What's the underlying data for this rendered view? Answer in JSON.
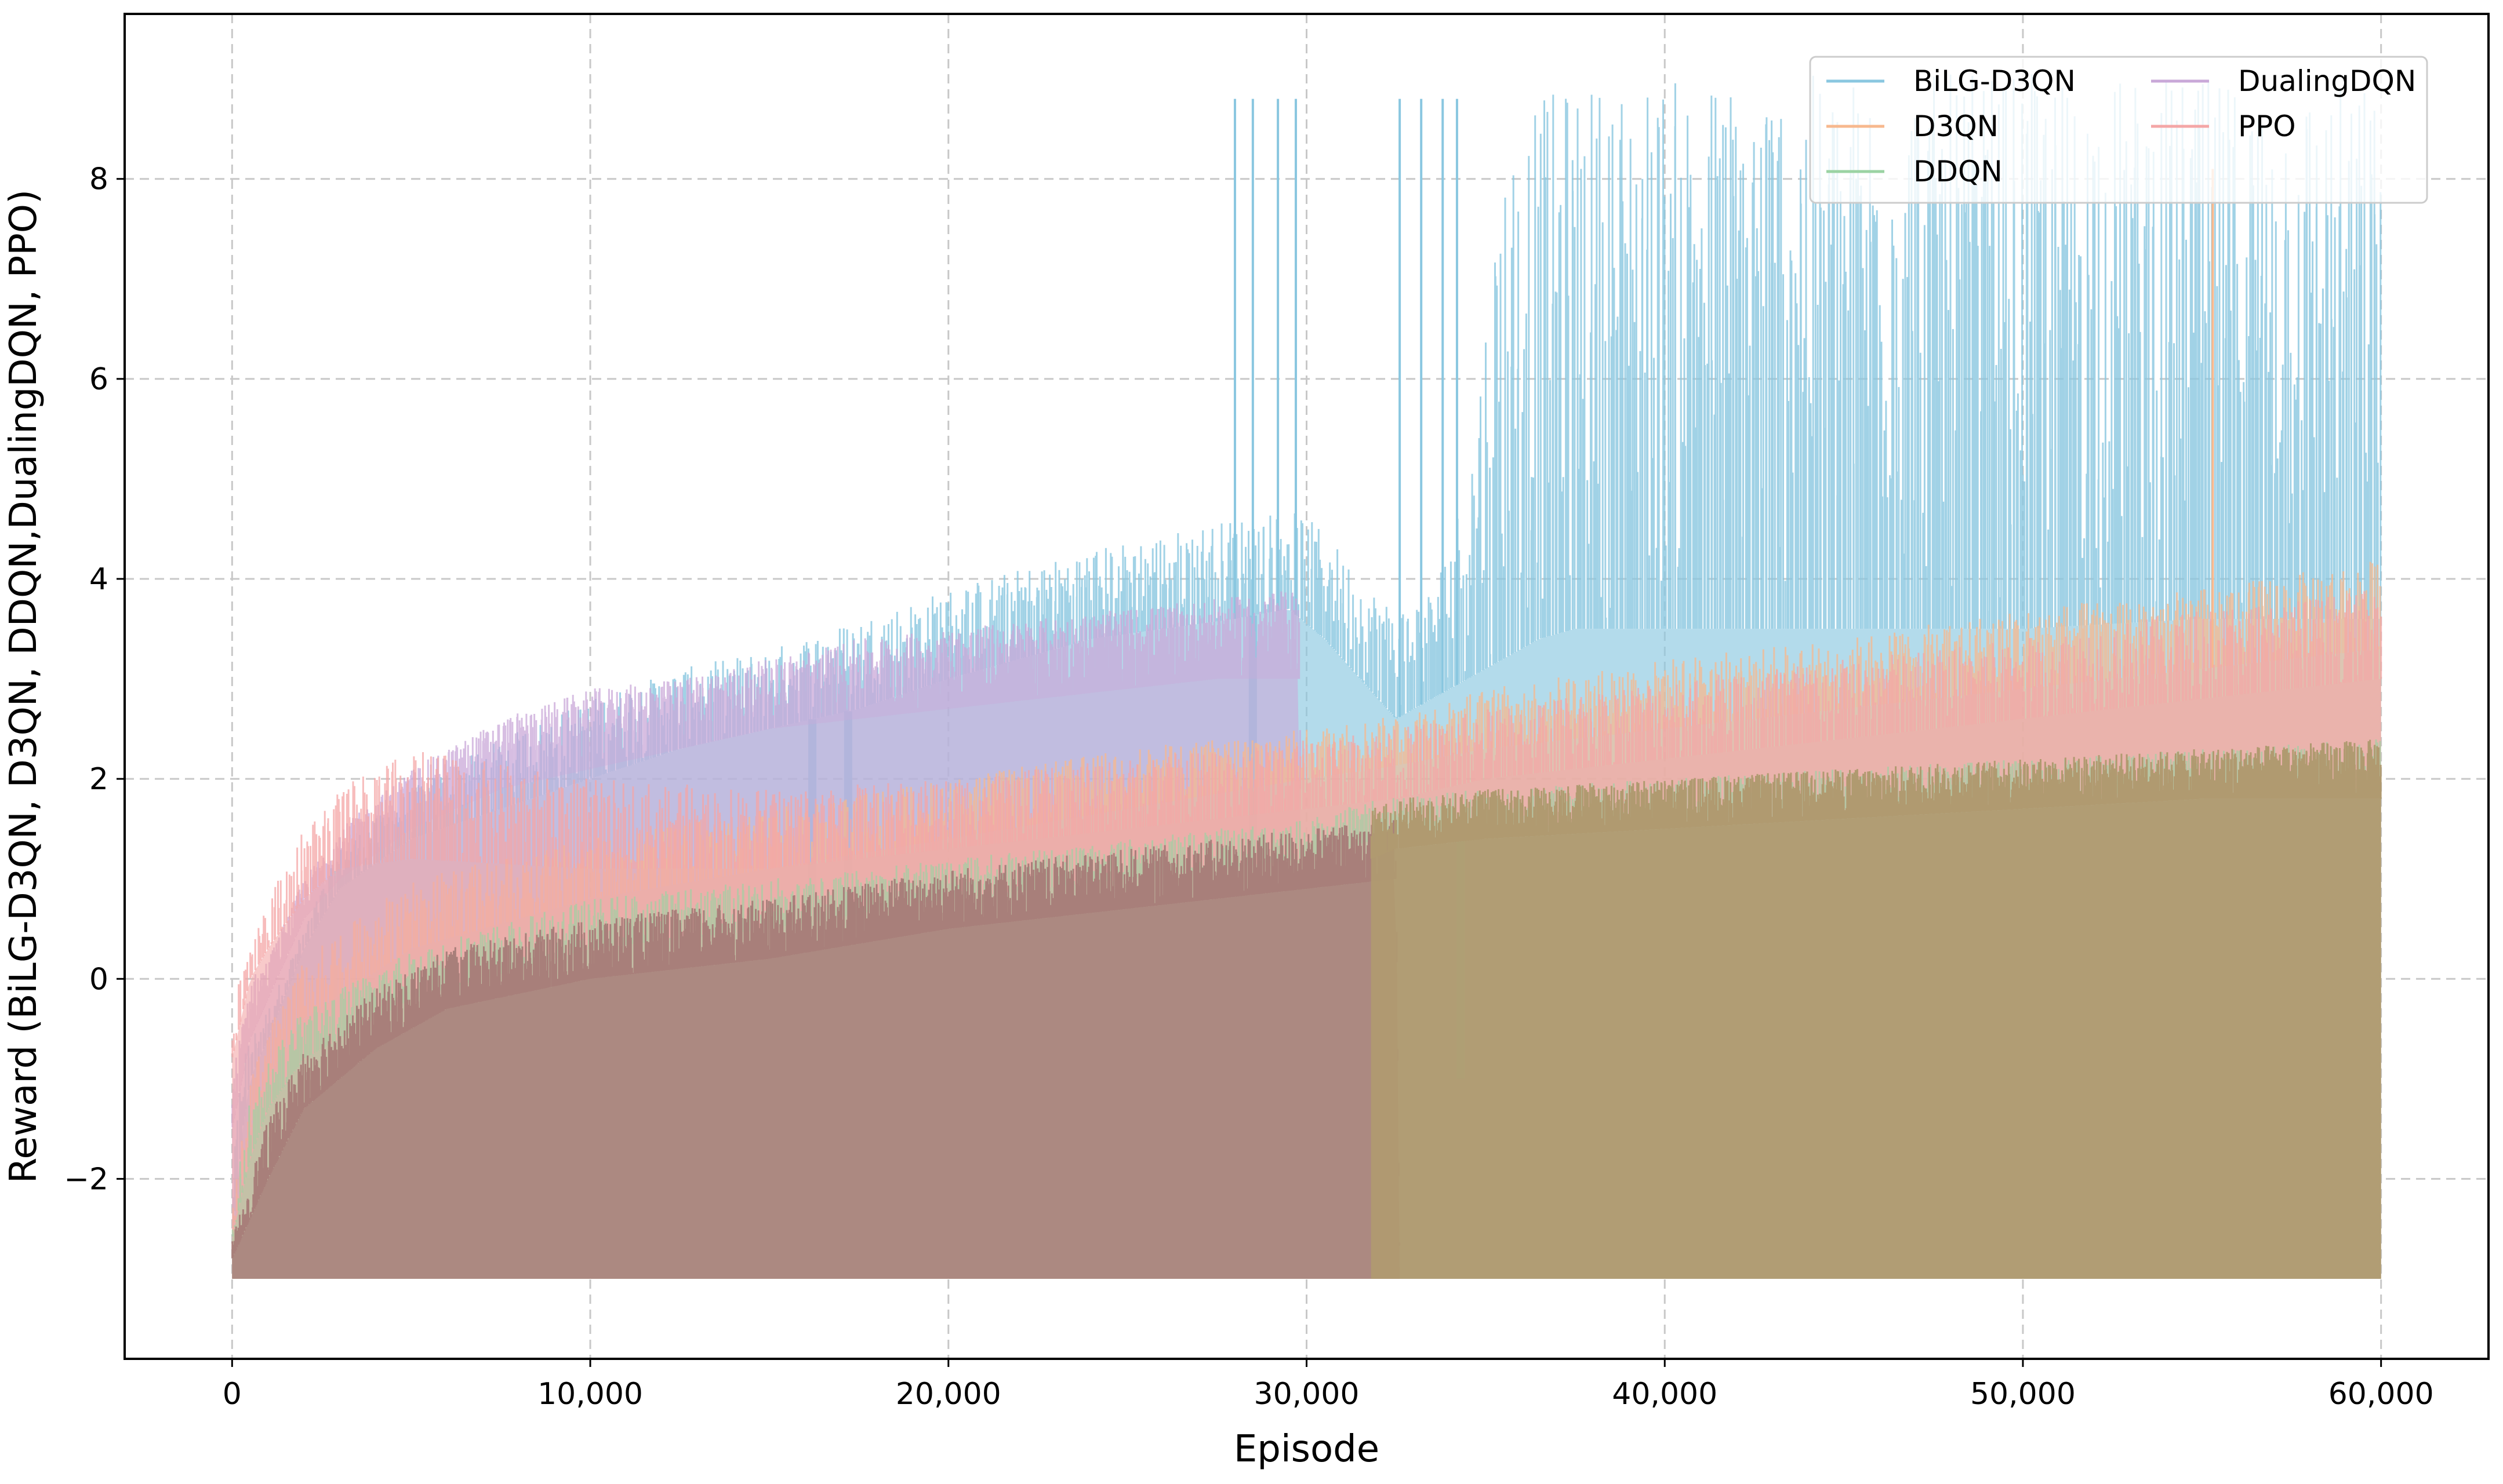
{
  "chart_data": {
    "type": "area",
    "xlabel": "Episode",
    "ylabel": "Reward (BiLG-D3QN, D3QN, DDQN,DualingDQN, PPO)",
    "xlim": [
      -3000,
      63000
    ],
    "ylim": [
      -3.8,
      9.65
    ],
    "xticks": [
      0,
      10000,
      20000,
      30000,
      40000,
      50000,
      60000
    ],
    "xtick_labels": [
      "0",
      "10,000",
      "20,000",
      "30,000",
      "40,000",
      "50,000",
      "60,000"
    ],
    "yticks": [
      -2,
      0,
      2,
      4,
      6,
      8
    ],
    "ytick_labels": [
      "−2",
      "0",
      "2",
      "4",
      "6",
      "8"
    ],
    "grid": true,
    "legend_position": "top-right",
    "legend_columns": 2,
    "series": [
      {
        "name": "BiLG-D3QN",
        "color": "#8ac7e0",
        "opacity": 0.65,
        "floor": -3.0,
        "x": [
          0,
          300,
          500,
          1000,
          2000,
          3000,
          5000,
          7500,
          10000,
          12500,
          15000,
          17500,
          20000,
          22000,
          24000,
          26000,
          28000,
          29500,
          30500,
          31500,
          32500,
          33500,
          34500,
          35500,
          36500,
          37500,
          40000,
          45000,
          50000,
          55000,
          60000
        ],
        "upper": [
          -2.0,
          -0.7,
          -0.6,
          -0.3,
          0.5,
          1.3,
          1.9,
          2.4,
          2.8,
          3.1,
          3.3,
          3.6,
          3.9,
          4.1,
          4.3,
          4.45,
          4.6,
          4.7,
          4.5,
          4.0,
          3.7,
          3.9,
          5.0,
          8.3,
          8.8,
          8.95,
          9.0,
          9.05,
          9.05,
          9.0,
          8.95
        ],
        "body": [
          -2.6,
          -1.5,
          -1.0,
          -0.6,
          0.3,
          0.9,
          1.4,
          1.7,
          2.0,
          2.3,
          2.5,
          2.7,
          3.0,
          3.2,
          3.4,
          3.5,
          3.6,
          3.7,
          3.4,
          3.0,
          2.6,
          2.8,
          3.0,
          3.2,
          3.4,
          3.5,
          3.5,
          3.5,
          3.5,
          3.6,
          3.6
        ],
        "spikes": [
          28000,
          28500,
          29200,
          29700,
          32600,
          33200,
          33800,
          34200
        ],
        "spike_value": 8.8,
        "dips": [
          [
            16200,
            -2.4
          ],
          [
            17200,
            -2.5
          ],
          [
            28500,
            -2.7
          ]
        ]
      },
      {
        "name": "D3QN",
        "color": "#f7b88e",
        "opacity": 0.6,
        "floor": -3.0,
        "x": [
          0,
          500,
          1000,
          2000,
          5000,
          10000,
          15000,
          20000,
          25000,
          30000,
          32000,
          35000,
          40000,
          45000,
          50000,
          55000,
          60000
        ],
        "upper": [
          -2.3,
          -1.0,
          -0.5,
          0.2,
          1.0,
          1.4,
          1.7,
          2.0,
          2.3,
          2.5,
          2.6,
          2.9,
          3.2,
          3.4,
          3.7,
          3.9,
          4.2
        ],
        "body": [
          -2.6,
          -1.5,
          -1.0,
          -0.4,
          0.3,
          0.8,
          1.1,
          1.4,
          1.7,
          2.0,
          2.1,
          2.3,
          2.5,
          2.7,
          2.9,
          3.1,
          3.3
        ],
        "spikes": [
          55300
        ],
        "spike_value": 8.1,
        "dips": []
      },
      {
        "name": "DDQN",
        "color": "#9bd3a3",
        "opacity": 0.5,
        "floor": -3.0,
        "x": [
          0,
          500,
          1000,
          2000,
          5000,
          10000,
          15000,
          20000,
          25000,
          30000,
          32000,
          35000,
          40000,
          45000,
          50000,
          55000,
          60000
        ],
        "upper": [
          -2.2,
          -1.2,
          -0.8,
          -0.3,
          0.3,
          0.8,
          1.0,
          1.2,
          1.4,
          1.6,
          1.8,
          1.9,
          2.0,
          2.1,
          2.2,
          2.3,
          2.4
        ],
        "body": [
          -2.6,
          -1.8,
          -1.3,
          -0.8,
          -0.2,
          0.3,
          0.5,
          0.8,
          1.0,
          1.2,
          1.4,
          1.5,
          1.6,
          1.7,
          1.8,
          1.9,
          1.9
        ],
        "spikes": [],
        "spike_value": 0,
        "dips": [
          [
            34300,
            -1.0
          ]
        ]
      },
      {
        "name": "DualingDQN",
        "color": "#c9a8d8",
        "opacity": 0.6,
        "floor": -3.0,
        "x": [
          0,
          500,
          1000,
          2000,
          3000,
          5000,
          7500,
          10000,
          12500,
          15000,
          17500,
          20000,
          22500,
          25000,
          27500,
          29800,
          29900
        ],
        "upper": [
          -1.0,
          0.0,
          0.2,
          1.0,
          1.5,
          2.1,
          2.6,
          2.9,
          3.0,
          3.2,
          3.4,
          3.5,
          3.6,
          3.7,
          3.8,
          3.9,
          -3.0
        ],
        "body": [
          -1.5,
          -0.6,
          -0.2,
          0.6,
          1.0,
          1.5,
          1.9,
          2.1,
          2.3,
          2.5,
          2.6,
          2.7,
          2.8,
          2.9,
          3.0,
          3.0,
          -3.0
        ],
        "spikes": [],
        "spike_value": 0,
        "dips": []
      },
      {
        "name": "PPO",
        "color": "#f4a6a6",
        "opacity": 0.6,
        "floor": -3.0,
        "x": [
          0,
          500,
          1000,
          2000,
          3000,
          5000,
          10000,
          15000,
          20000,
          25000,
          30000,
          32500,
          35000,
          40000,
          45000,
          50000,
          55000,
          60000
        ],
        "upper": [
          -0.2,
          0.4,
          0.8,
          1.5,
          1.9,
          2.3,
          2.0,
          1.9,
          2.0,
          2.2,
          2.4,
          2.5,
          2.7,
          3.0,
          3.2,
          3.4,
          3.7,
          3.9
        ],
        "body": [
          -0.8,
          0.0,
          0.3,
          0.8,
          1.1,
          1.2,
          1.1,
          1.1,
          1.3,
          1.5,
          1.7,
          1.8,
          2.0,
          2.2,
          2.4,
          2.6,
          2.8,
          3.0
        ],
        "spikes": [],
        "spike_value": 0,
        "dips": []
      }
    ],
    "overlays": [
      {
        "color": "#a87f7a",
        "opacity": 0.85,
        "floor": -3.0,
        "x": [
          0,
          1000,
          2000,
          4000,
          6000,
          10000,
          15000,
          20000,
          25000,
          30000,
          32500,
          32600
        ],
        "upper": [
          -2.6,
          -1.4,
          -0.7,
          -0.1,
          0.3,
          0.6,
          0.8,
          1.1,
          1.3,
          1.5,
          1.6,
          -3.0
        ],
        "body": [
          -2.8,
          -2.0,
          -1.3,
          -0.7,
          -0.3,
          0.0,
          0.2,
          0.5,
          0.7,
          0.9,
          1.0,
          -3.0
        ]
      },
      {
        "color": "#b09a70",
        "opacity": 0.92,
        "floor": -3.0,
        "x": [
          31800,
          32500,
          35000,
          40000,
          45000,
          50000,
          55000,
          60000
        ],
        "upper": [
          1.7,
          1.8,
          1.9,
          2.0,
          2.1,
          2.2,
          2.3,
          2.4
        ],
        "body": [
          1.2,
          1.3,
          1.4,
          1.5,
          1.6,
          1.7,
          1.8,
          1.8
        ]
      }
    ]
  }
}
